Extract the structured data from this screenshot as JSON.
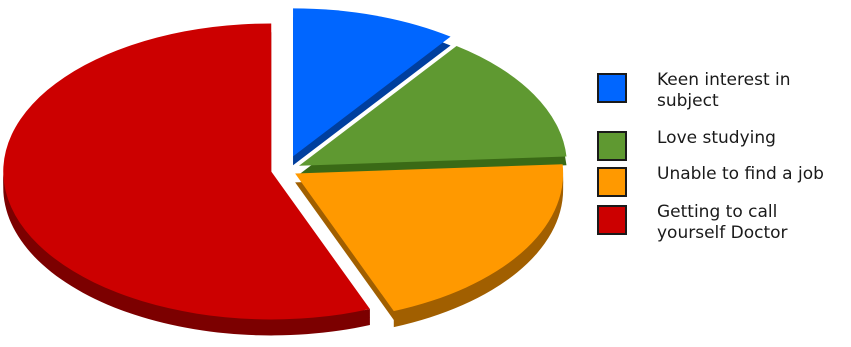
{
  "chart_data": {
    "type": "pie",
    "title": "",
    "slices": [
      {
        "label": "Keen interest in subject",
        "value": 10,
        "color": "#0066ff",
        "side": "#003f9e"
      },
      {
        "label": "Love studying",
        "value": 14,
        "color": "#5f9931",
        "side": "#3a6a16"
      },
      {
        "label": "Unable to find a job",
        "value": 20,
        "color": "#ff9900",
        "side": "#a15f00"
      },
      {
        "label": "Getting to call yourself Doctor",
        "value": 56,
        "color": "#cc0000",
        "side": "#7c0000"
      }
    ],
    "legend_position": "right",
    "exploded": true,
    "three_d": true
  }
}
